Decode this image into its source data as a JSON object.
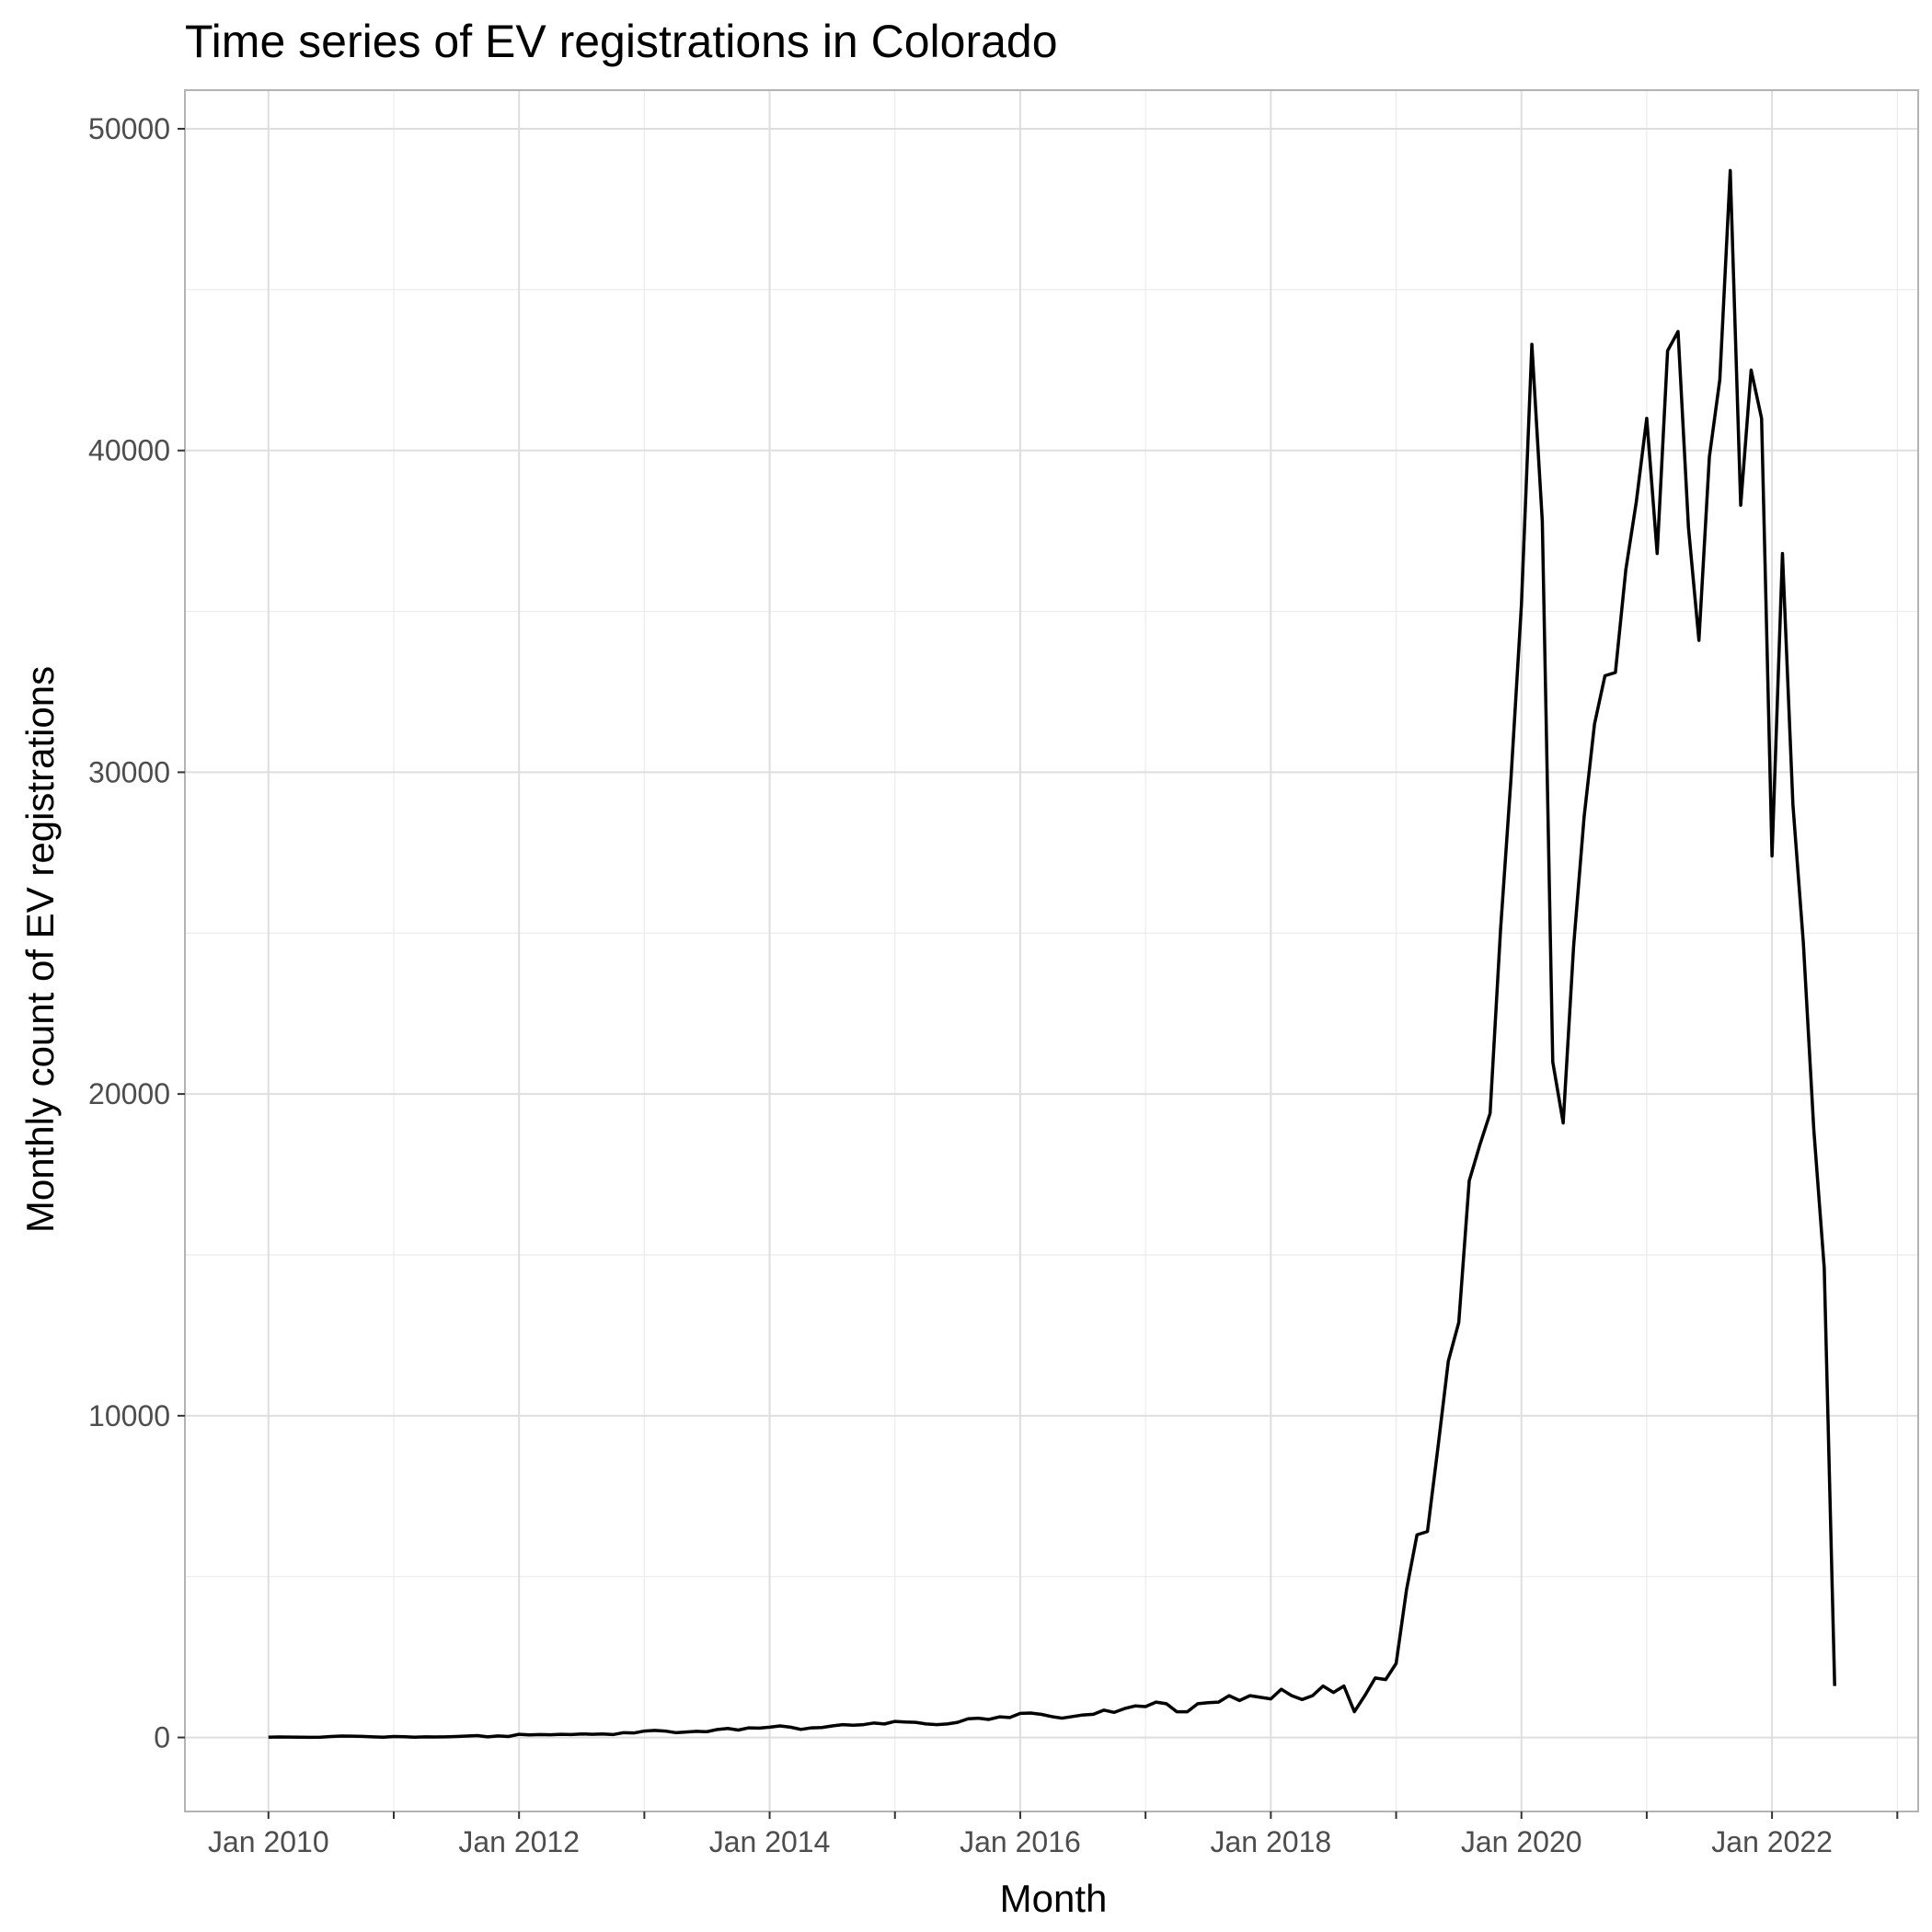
{
  "chart_data": {
    "type": "line",
    "title": "Time series of EV registrations in Colorado",
    "xlabel": "Month",
    "ylabel": "Monthly count of EV registrations",
    "x_format": "YYYY-MM",
    "xlim": [
      "2009-05",
      "2023-03"
    ],
    "ylim": [
      -2300,
      51200
    ],
    "x_ticks": [
      {
        "value": "2010-01",
        "label": "Jan 2010"
      },
      {
        "value": "2012-01",
        "label": "Jan 2012"
      },
      {
        "value": "2014-01",
        "label": "Jan 2014"
      },
      {
        "value": "2016-01",
        "label": "Jan 2016"
      },
      {
        "value": "2018-01",
        "label": "Jan 2018"
      },
      {
        "value": "2020-01",
        "label": "Jan 2020"
      },
      {
        "value": "2022-01",
        "label": "Jan 2022"
      }
    ],
    "x_minor_ticks": [
      "2011-01",
      "2013-01",
      "2015-01",
      "2017-01",
      "2019-01",
      "2021-01",
      "2023-01"
    ],
    "y_ticks": [
      {
        "value": 0,
        "label": "0"
      },
      {
        "value": 10000,
        "label": "10000"
      },
      {
        "value": 20000,
        "label": "20000"
      },
      {
        "value": 30000,
        "label": "30000"
      },
      {
        "value": 40000,
        "label": "40000"
      },
      {
        "value": 50000,
        "label": "50000"
      }
    ],
    "y_minor_ticks": [
      5000,
      15000,
      25000,
      35000,
      45000
    ],
    "grid": true,
    "line_color": "#000000",
    "series": [
      {
        "x": [
          "2010-01",
          "2010-02",
          "2010-03",
          "2010-04",
          "2010-05",
          "2010-06",
          "2010-07",
          "2010-08",
          "2010-09",
          "2010-10",
          "2010-11",
          "2010-12",
          "2011-01",
          "2011-02",
          "2011-03",
          "2011-04",
          "2011-05",
          "2011-06",
          "2011-07",
          "2011-08",
          "2011-09",
          "2011-10",
          "2011-11",
          "2011-12",
          "2012-01",
          "2012-02",
          "2012-03",
          "2012-04",
          "2012-05",
          "2012-06",
          "2012-07",
          "2012-08",
          "2012-09",
          "2012-10",
          "2012-11",
          "2012-12",
          "2013-01",
          "2013-02",
          "2013-03",
          "2013-04",
          "2013-05",
          "2013-06",
          "2013-07",
          "2013-08",
          "2013-09",
          "2013-10",
          "2013-11",
          "2013-12",
          "2014-01",
          "2014-02",
          "2014-03",
          "2014-04",
          "2014-05",
          "2014-06",
          "2014-07",
          "2014-08",
          "2014-09",
          "2014-10",
          "2014-11",
          "2014-12",
          "2015-01",
          "2015-02",
          "2015-03",
          "2015-04",
          "2015-05",
          "2015-06",
          "2015-07",
          "2015-08",
          "2015-09",
          "2015-10",
          "2015-11",
          "2015-12",
          "2016-01",
          "2016-02",
          "2016-03",
          "2016-04",
          "2016-05",
          "2016-06",
          "2016-07",
          "2016-08",
          "2016-09",
          "2016-10",
          "2016-11",
          "2016-12",
          "2017-01",
          "2017-02",
          "2017-03",
          "2017-04",
          "2017-05",
          "2017-06",
          "2017-07",
          "2017-08",
          "2017-09",
          "2017-10",
          "2017-11",
          "2017-12",
          "2018-01",
          "2018-02",
          "2018-03",
          "2018-04",
          "2018-05",
          "2018-06",
          "2018-07",
          "2018-08",
          "2018-09",
          "2018-10",
          "2018-11",
          "2018-12",
          "2019-01",
          "2019-02",
          "2019-03",
          "2019-04",
          "2019-05",
          "2019-06",
          "2019-07",
          "2019-08",
          "2019-09",
          "2019-10",
          "2019-11",
          "2019-12",
          "2020-01",
          "2020-02",
          "2020-03",
          "2020-04",
          "2020-05",
          "2020-06",
          "2020-07",
          "2020-08",
          "2020-09",
          "2020-10",
          "2020-11",
          "2020-12",
          "2021-01",
          "2021-02",
          "2021-03",
          "2021-04",
          "2021-05",
          "2021-06",
          "2021-07",
          "2021-08",
          "2021-09",
          "2021-10",
          "2021-11",
          "2021-12",
          "2022-01",
          "2022-02",
          "2022-03",
          "2022-04",
          "2022-05",
          "2022-06",
          "2022-07"
        ],
        "y": [
          10,
          15,
          12,
          8,
          5,
          10,
          30,
          45,
          40,
          35,
          20,
          10,
          30,
          25,
          10,
          20,
          15,
          20,
          30,
          45,
          60,
          20,
          50,
          30,
          100,
          80,
          90,
          85,
          100,
          90,
          110,
          100,
          110,
          90,
          150,
          140,
          200,
          220,
          200,
          150,
          170,
          190,
          180,
          250,
          280,
          230,
          300,
          290,
          320,
          360,
          320,
          250,
          300,
          310,
          360,
          400,
          380,
          400,
          450,
          420,
          500,
          480,
          470,
          420,
          400,
          420,
          470,
          580,
          600,
          560,
          640,
          620,
          750,
          760,
          720,
          650,
          600,
          650,
          700,
          720,
          850,
          780,
          900,
          980,
          960,
          1100,
          1050,
          800,
          800,
          1050,
          1080,
          1100,
          1300,
          1150,
          1300,
          1250,
          1200,
          1500,
          1300,
          1180,
          1300,
          1600,
          1400,
          1600,
          800,
          1300,
          1850,
          1800,
          2300,
          4600,
          6300,
          6400,
          9000,
          11700,
          12900,
          17300,
          18400,
          19400,
          25100,
          29800,
          35200,
          43300,
          37800,
          21000,
          19100,
          24600,
          28600,
          31500,
          33000,
          33100,
          36300,
          38400,
          41000,
          36800,
          43100,
          43700,
          37600,
          34100,
          39800,
          42200,
          48700,
          38300,
          42500,
          41000,
          27400,
          36800,
          29000,
          24700,
          18900,
          14600,
          1600
        ]
      }
    ]
  }
}
